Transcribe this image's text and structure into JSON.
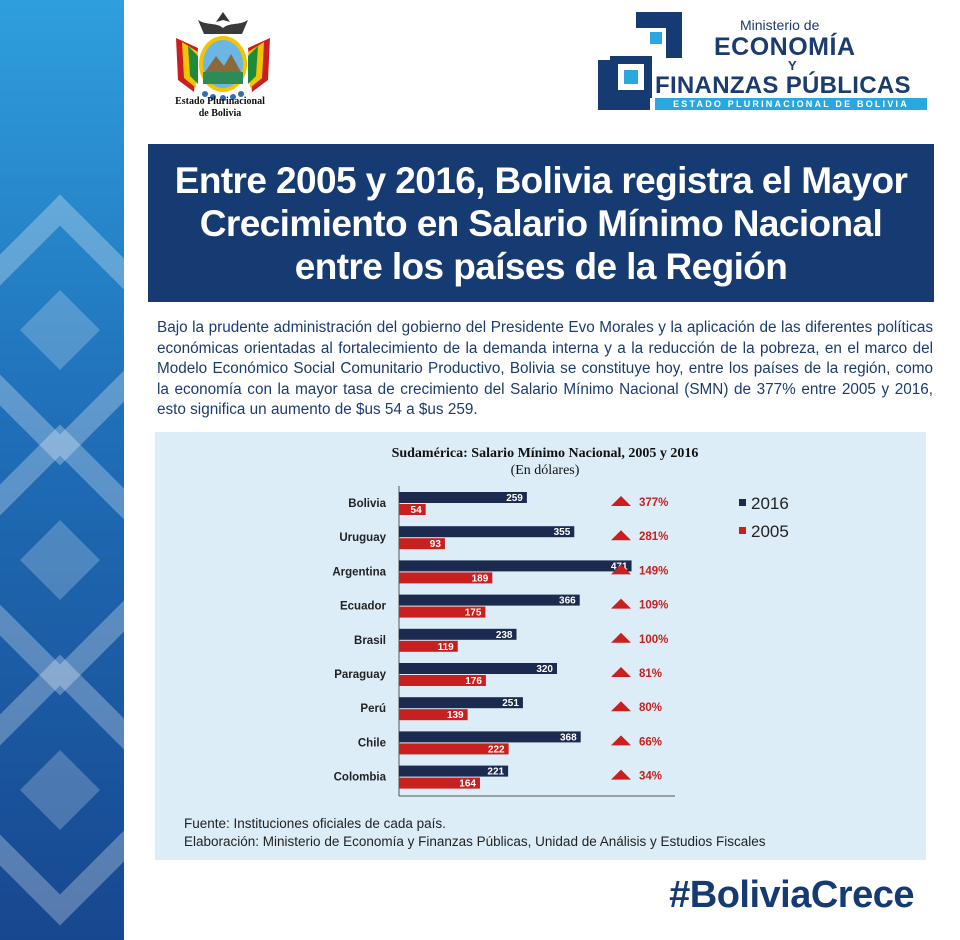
{
  "crest": {
    "caption_line1": "Estado Plurinacional",
    "caption_line2": "de Bolivia"
  },
  "ministry": {
    "line1": "Ministerio de",
    "line2": "ECONOMÍA",
    "line3": "Y",
    "line4": "FINANZAS PÚBLICAS",
    "strip": "ESTADO PLURINACIONAL DE BOLIVIA"
  },
  "title": "Entre 2005 y 2016, Bolivia registra el Mayor Crecimiento en Salario Mínimo Nacional entre los países de la Región",
  "intro": "Bajo la prudente administración del gobierno del Presidente Evo Morales y la aplicación de las diferentes políticas económicas orientadas al fortalecimiento de la demanda interna y a la reducción de la pobreza, en el marco del Modelo Económico Social Comunitario Productivo, Bolivia se constituye hoy, entre los países de la región, como la economía con la mayor tasa de crecimiento del Salario Mínimo Nacional (SMN) de 377% entre 2005 y 2016, esto significa un aumento de $us 54 a $us 259.",
  "chart_data": {
    "type": "bar",
    "orientation": "horizontal",
    "title": "Sudamérica: Salario Mínimo Nacional, 2005 y 2016",
    "subtitle": "(En dólares)",
    "categories": [
      "Bolivia",
      "Uruguay",
      "Argentina",
      "Ecuador",
      "Brasil",
      "Paraguay",
      "Perú",
      "Chile",
      "Colombia"
    ],
    "series": [
      {
        "name": "2016",
        "color": "#1b2a4e",
        "values": [
          259,
          355,
          471,
          366,
          238,
          320,
          251,
          368,
          221
        ]
      },
      {
        "name": "2005",
        "color": "#c8201f",
        "values": [
          54,
          93,
          189,
          175,
          119,
          176,
          139,
          222,
          164
        ]
      }
    ],
    "growth_labels": [
      "377%",
      "281%",
      "149%",
      "109%",
      "100%",
      "81%",
      "80%",
      "66%",
      "34%"
    ],
    "growth_color": "#c8201f",
    "xlim": [
      0,
      480
    ],
    "grid": false,
    "legend": "right"
  },
  "source": {
    "line1": "Fuente: Instituciones oficiales de cada país.",
    "line2": "Elaboración: Ministerio de Economía y Finanzas Públicas, Unidad de Análisis y Estudios Fiscales"
  },
  "hashtag": "#BoliviaCrece",
  "colors": {
    "navy": "#163a72",
    "band_light": "#2f9fdc",
    "panel": "#dcedf8",
    "accent_cyan": "#2aa7df"
  }
}
